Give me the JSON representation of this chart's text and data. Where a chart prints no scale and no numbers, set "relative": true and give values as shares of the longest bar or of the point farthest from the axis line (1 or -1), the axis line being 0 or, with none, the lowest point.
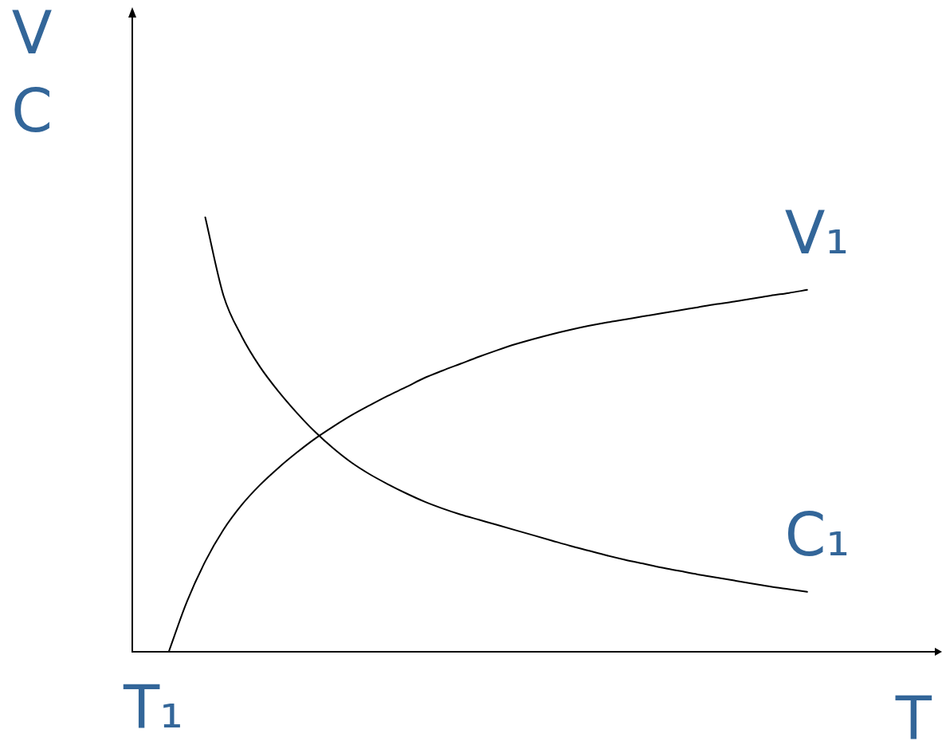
{
  "chart_data": {
    "type": "line",
    "relative": true,
    "xlabel": "T",
    "ylabel": "V\nC",
    "annotations": [
      "T₁"
    ],
    "categories": [
      null,
      null,
      null,
      null,
      null,
      null,
      null,
      null,
      null,
      null,
      null,
      null,
      null,
      null,
      null,
      null,
      null,
      null,
      null,
      null,
      null,
      null,
      null,
      null,
      null,
      null,
      null,
      null,
      null,
      null,
      null,
      null,
      null,
      null,
      null,
      null,
      null,
      null,
      null,
      null,
      null,
      null,
      null,
      null,
      null
    ],
    "series": [
      {
        "name": "V₁",
        "color": "#000000",
        "values": [
          null,
          null,
          0,
          0.116,
          0.208,
          0.281,
          0.338,
          0.384,
          0.423,
          0.458,
          0.49,
          0.518,
          0.544,
          0.567,
          0.589,
          0.609,
          0.63,
          0.647,
          0.663,
          0.679,
          0.694,
          0.708,
          0.72,
          0.731,
          0.741,
          0.75,
          0.758,
          0.765,
          0.772,
          0.779,
          0.786,
          0.793,
          0.8,
          0.806,
          0.813,
          0.82,
          0.826,
          0.833,
          null,
          null,
          null,
          null,
          null,
          null,
          null
        ]
      },
      {
        "name": "C₁",
        "color": "#000000",
        "values": [
          null,
          null,
          null,
          null,
          1,
          0.82,
          0.726,
          0.656,
          0.6,
          0.551,
          0.507,
          0.469,
          0.436,
          0.409,
          0.386,
          0.365,
          0.346,
          0.33,
          0.316,
          0.304,
          0.292,
          0.28,
          0.268,
          0.256,
          0.244,
          0.233,
          0.222,
          0.212,
          0.203,
          0.194,
          0.186,
          0.178,
          0.171,
          0.164,
          0.157,
          0.15,
          0.144,
          0.138,
          null,
          null,
          null,
          null,
          null,
          null,
          null
        ]
      }
    ]
  }
}
